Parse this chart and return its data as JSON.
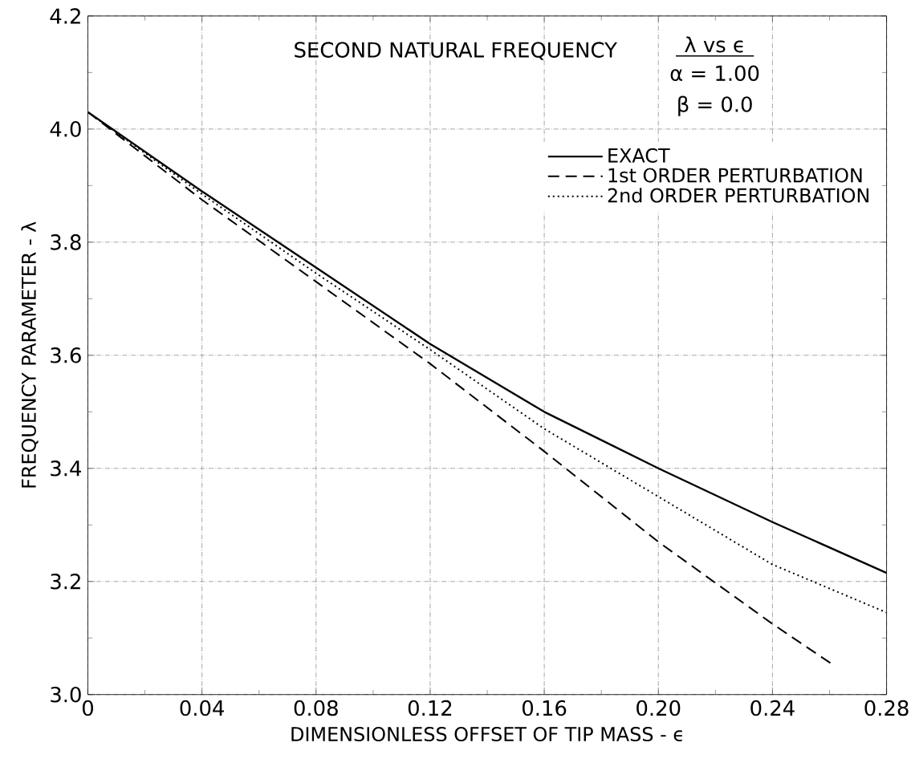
{
  "chart_data": {
    "type": "line",
    "title": "SECOND NATURAL FREQUENCY",
    "xlabel": "DIMENSIONLESS OFFSET OF TIP MASS - ϵ",
    "ylabel": "FREQUENCY PARAMETER - λ",
    "annotations": [
      "λ vs ϵ",
      "α = 1.00",
      "β = 0.0"
    ],
    "xlim": [
      0,
      0.28
    ],
    "xticks": [
      {
        "value": 0,
        "label": "0"
      },
      0.04,
      0.08,
      0.12,
      0.16,
      {
        "value": 0.2,
        "label": "0.20"
      },
      0.24,
      0.28
    ],
    "ylim": [
      3.0,
      4.2
    ],
    "yticks": [
      {
        "value": 3.0,
        "label": "3.0"
      },
      3.2,
      3.4,
      3.6,
      3.8,
      {
        "value": 4.0,
        "label": "4.0"
      },
      4.2
    ],
    "grid": true,
    "legend": "top right",
    "series": [
      {
        "name": "EXACT",
        "color": "#000000",
        "line_style": "solid",
        "x": [
          0,
          0.04,
          0.08,
          0.12,
          0.16,
          0.2,
          0.24,
          0.28
        ],
        "values": [
          4.03,
          3.89,
          3.755,
          3.62,
          3.5,
          3.4,
          3.305,
          3.215
        ]
      },
      {
        "name": "1st ORDER PERTURBATION",
        "color": "#000000",
        "line_style": "dashed",
        "x": [
          0,
          0.04,
          0.08,
          0.12,
          0.16,
          0.2,
          0.24,
          0.262
        ],
        "values": [
          4.03,
          3.875,
          3.73,
          3.585,
          3.43,
          3.27,
          3.125,
          3.05
        ]
      },
      {
        "name": "2nd ORDER PERTURBATION",
        "color": "#000000",
        "line_style": "dotted",
        "x": [
          0,
          0.04,
          0.08,
          0.12,
          0.16,
          0.2,
          0.24,
          0.28
        ],
        "values": [
          4.03,
          3.885,
          3.745,
          3.61,
          3.47,
          3.35,
          3.23,
          3.145
        ]
      }
    ]
  }
}
